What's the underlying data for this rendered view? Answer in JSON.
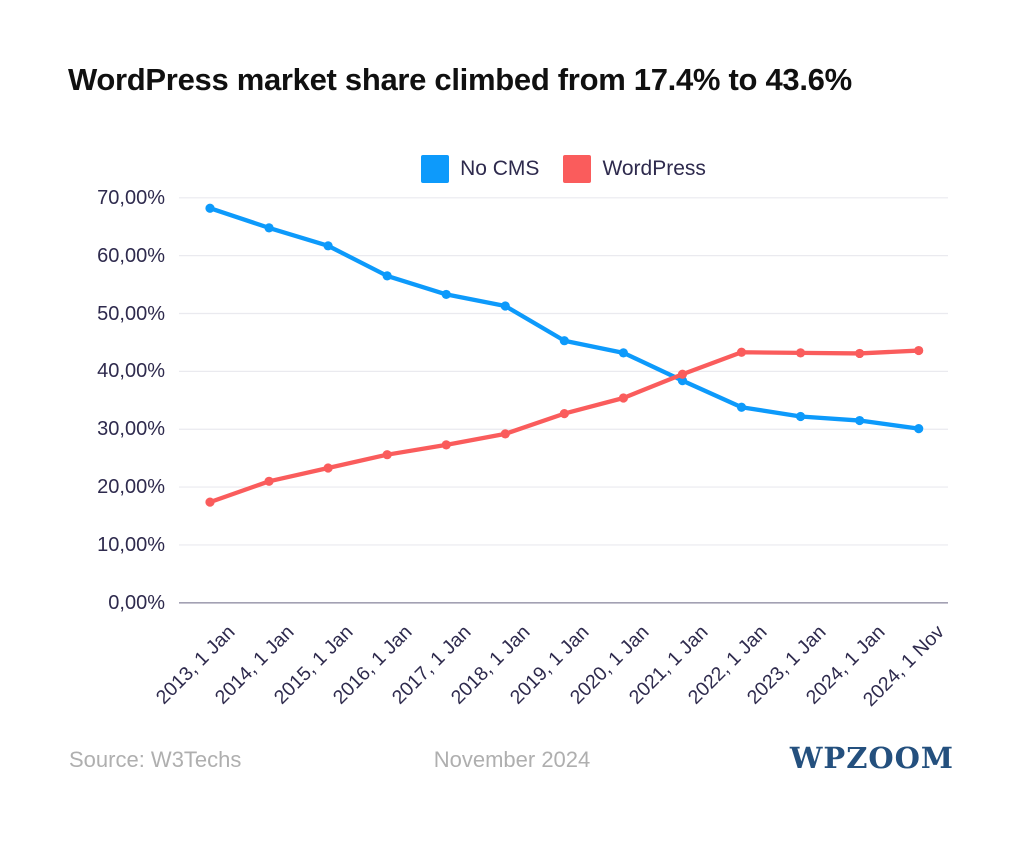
{
  "title": "WordPress market share climbed from 17.4% to 43.6%",
  "chart_data": {
    "type": "line",
    "title": "WordPress market share climbed from 17.4% to 43.6%",
    "xlabel": "",
    "ylabel": "",
    "grid": "horizontal",
    "legend_position": "top-center",
    "point_markers": true,
    "ylim": [
      0,
      70
    ],
    "x": [
      "2013, 1 Jan",
      "2014, 1 Jan",
      "2015, 1 Jan",
      "2016, 1 Jan",
      "2017, 1 Jan",
      "2018, 1 Jan",
      "2019, 1 Jan",
      "2020, 1 Jan",
      "2021, 1 Jan",
      "2022, 1 Jan",
      "2023, 1 Jan",
      "2024, 1 Jan",
      "2024, 1 Nov"
    ],
    "series": [
      {
        "name": "No CMS",
        "color": "#0D9AFB",
        "values": [
          68.2,
          64.8,
          61.7,
          56.5,
          53.3,
          51.3,
          45.3,
          43.2,
          38.4,
          33.8,
          32.2,
          31.5,
          30.1
        ]
      },
      {
        "name": "WordPress",
        "color": "#FA5C5C",
        "values": [
          17.4,
          21.0,
          23.3,
          25.6,
          27.3,
          29.2,
          32.7,
          35.4,
          39.5,
          43.3,
          43.2,
          43.1,
          43.6
        ]
      }
    ],
    "y_ticks": [
      {
        "value": 70,
        "label": "70,00%"
      },
      {
        "value": 60,
        "label": "60,00%"
      },
      {
        "value": 50,
        "label": "50,00%"
      },
      {
        "value": 40,
        "label": "40,00%"
      },
      {
        "value": 30,
        "label": "30,00%"
      },
      {
        "value": 20,
        "label": "20,00%"
      },
      {
        "value": 10,
        "label": "10,00%"
      },
      {
        "value": 0,
        "label": "0,00%"
      }
    ]
  },
  "footer": {
    "source": "Source: W3Techs",
    "date": "November 2024",
    "brand": "WPZOOM"
  },
  "colors": {
    "background": "#FFFFFF",
    "title": "#101010",
    "axis_text": "#2E2A4D",
    "gridline": "#EAEAEF",
    "baseline": "#A3A1B3",
    "footer_text": "#AFAFAF",
    "brand": "#24507E",
    "no_cms_line": "#0D9AFB",
    "wordpress_line": "#FA5C5C"
  }
}
